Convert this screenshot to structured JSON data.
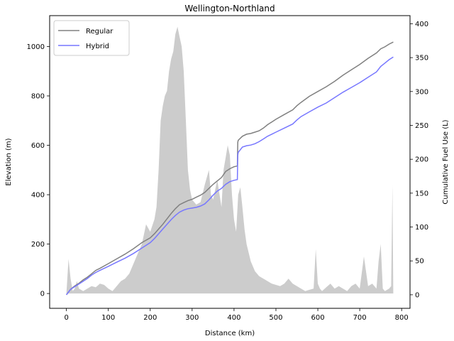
{
  "chart_data": {
    "type": "line",
    "title": "Wellington-Northland",
    "xlabel": "Distance (km)",
    "ylabel": "Elevation (m)",
    "y2label": "Cumulative Fuel Use (L)",
    "xlim": [
      -40,
      820
    ],
    "ylim": [
      -60,
      1125
    ],
    "y2lim": [
      -20,
      412
    ],
    "xticks": [
      0,
      100,
      200,
      300,
      400,
      500,
      600,
      700,
      800
    ],
    "yticks": [
      0,
      200,
      400,
      600,
      800,
      1000
    ],
    "y2ticks": [
      0,
      50,
      100,
      150,
      200,
      250,
      300,
      350,
      400
    ],
    "legend_position": "upper-left",
    "elevation": {
      "color": "#cccccc",
      "x": [
        0,
        5,
        10,
        15,
        20,
        25,
        30,
        40,
        50,
        60,
        70,
        80,
        90,
        100,
        110,
        120,
        130,
        140,
        150,
        160,
        170,
        180,
        190,
        200,
        210,
        215,
        220,
        225,
        230,
        235,
        240,
        245,
        250,
        255,
        260,
        265,
        270,
        275,
        280,
        285,
        290,
        295,
        300,
        310,
        320,
        330,
        340,
        345,
        350,
        360,
        370,
        375,
        380,
        385,
        390,
        395,
        400,
        405,
        410,
        415,
        420,
        425,
        430,
        440,
        450,
        460,
        470,
        480,
        490,
        500,
        510,
        520,
        530,
        540,
        550,
        560,
        570,
        580,
        590,
        595,
        600,
        605,
        610,
        620,
        630,
        640,
        650,
        660,
        670,
        680,
        690,
        700,
        710,
        720,
        730,
        740,
        745,
        750,
        755,
        760,
        770,
        775,
        778,
        780
      ],
      "y": [
        0,
        140,
        60,
        10,
        20,
        50,
        20,
        10,
        20,
        30,
        25,
        40,
        35,
        20,
        10,
        30,
        50,
        60,
        80,
        120,
        160,
        200,
        280,
        250,
        300,
        350,
        500,
        700,
        760,
        800,
        820,
        900,
        950,
        980,
        1050,
        1080,
        1040,
        1000,
        900,
        700,
        500,
        420,
        380,
        360,
        370,
        440,
        500,
        400,
        380,
        460,
        350,
        500,
        550,
        600,
        560,
        400,
        300,
        250,
        400,
        430,
        350,
        260,
        200,
        130,
        90,
        70,
        60,
        50,
        40,
        35,
        30,
        40,
        60,
        40,
        30,
        20,
        10,
        15,
        20,
        180,
        40,
        20,
        10,
        25,
        40,
        20,
        30,
        20,
        10,
        30,
        40,
        20,
        150,
        30,
        40,
        20,
        130,
        200,
        20,
        10,
        20,
        30,
        440,
        0
      ]
    },
    "series": [
      {
        "name": "Regular",
        "color": "#808080",
        "x": [
          0,
          10,
          20,
          30,
          40,
          50,
          60,
          70,
          80,
          100,
          120,
          140,
          160,
          180,
          200,
          210,
          220,
          230,
          240,
          250,
          260,
          270,
          280,
          290,
          300,
          310,
          320,
          330,
          340,
          350,
          360,
          370,
          380,
          390,
          400,
          408,
          409,
          410,
          420,
          430,
          440,
          450,
          460,
          470,
          480,
          490,
          500,
          520,
          540,
          550,
          560,
          580,
          600,
          620,
          640,
          660,
          680,
          700,
          720,
          740,
          750,
          760,
          770,
          780
        ],
        "y": [
          0,
          8,
          13,
          17,
          22,
          26,
          31,
          36,
          39,
          46,
          53,
          60,
          68,
          77,
          84,
          90,
          97,
          104,
          112,
          120,
          127,
          133,
          136,
          139,
          141,
          144,
          147,
          151,
          157,
          163,
          168,
          173,
          182,
          186,
          189,
          190,
          225,
          228,
          234,
          237,
          238,
          240,
          242,
          246,
          251,
          255,
          259,
          266,
          273,
          279,
          284,
          293,
          300,
          307,
          315,
          324,
          332,
          340,
          349,
          357,
          363,
          366,
          370,
          373
        ]
      },
      {
        "name": "Hybrid",
        "color": "#7777ff",
        "x": [
          0,
          10,
          20,
          30,
          40,
          50,
          60,
          70,
          80,
          100,
          120,
          140,
          160,
          180,
          200,
          210,
          220,
          230,
          240,
          250,
          260,
          270,
          280,
          290,
          300,
          310,
          320,
          330,
          340,
          350,
          360,
          370,
          380,
          390,
          400,
          408,
          409,
          410,
          420,
          430,
          440,
          450,
          460,
          470,
          480,
          490,
          500,
          520,
          540,
          550,
          560,
          580,
          600,
          620,
          640,
          660,
          680,
          700,
          720,
          740,
          750,
          760,
          770,
          780
        ],
        "y": [
          0,
          8,
          12,
          16,
          20,
          24,
          29,
          33,
          36,
          42,
          48,
          54,
          61,
          69,
          77,
          83,
          90,
          97,
          104,
          111,
          117,
          122,
          125,
          127,
          128,
          129,
          131,
          134,
          140,
          147,
          153,
          157,
          163,
          167,
          169,
          170,
          206,
          210,
          218,
          220,
          221,
          223,
          226,
          230,
          234,
          237,
          240,
          246,
          252,
          258,
          263,
          270,
          277,
          283,
          291,
          299,
          306,
          313,
          321,
          329,
          337,
          342,
          347,
          351
        ]
      }
    ]
  }
}
